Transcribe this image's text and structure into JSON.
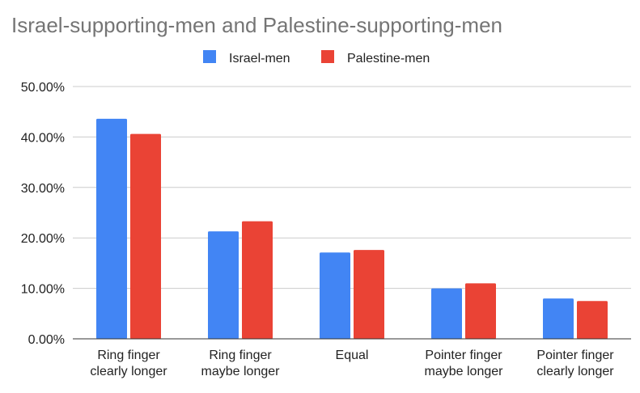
{
  "chart_data": {
    "type": "bar",
    "title": "Israel-supporting-men and Palestine-supporting-men",
    "xlabel": "",
    "ylabel": "",
    "categories": [
      [
        "Ring finger",
        "clearly longer"
      ],
      [
        "Ring finger",
        "maybe longer"
      ],
      [
        "Equal"
      ],
      [
        "Pointer finger",
        "maybe longer"
      ],
      [
        "Pointer finger",
        "clearly longer"
      ]
    ],
    "series": [
      {
        "name": "Israel-men",
        "color": "#4285f4",
        "values": [
          43.6,
          21.3,
          17.1,
          10.0,
          8.0
        ]
      },
      {
        "name": "Palestine-men",
        "color": "#ea4335",
        "values": [
          40.6,
          23.3,
          17.6,
          11.0,
          7.5
        ]
      }
    ],
    "ylim": [
      0,
      50
    ],
    "yticks": [
      "0.00%",
      "10.00%",
      "20.00%",
      "30.00%",
      "40.00%",
      "50.00%"
    ],
    "grid": true,
    "legend_position": "top"
  }
}
